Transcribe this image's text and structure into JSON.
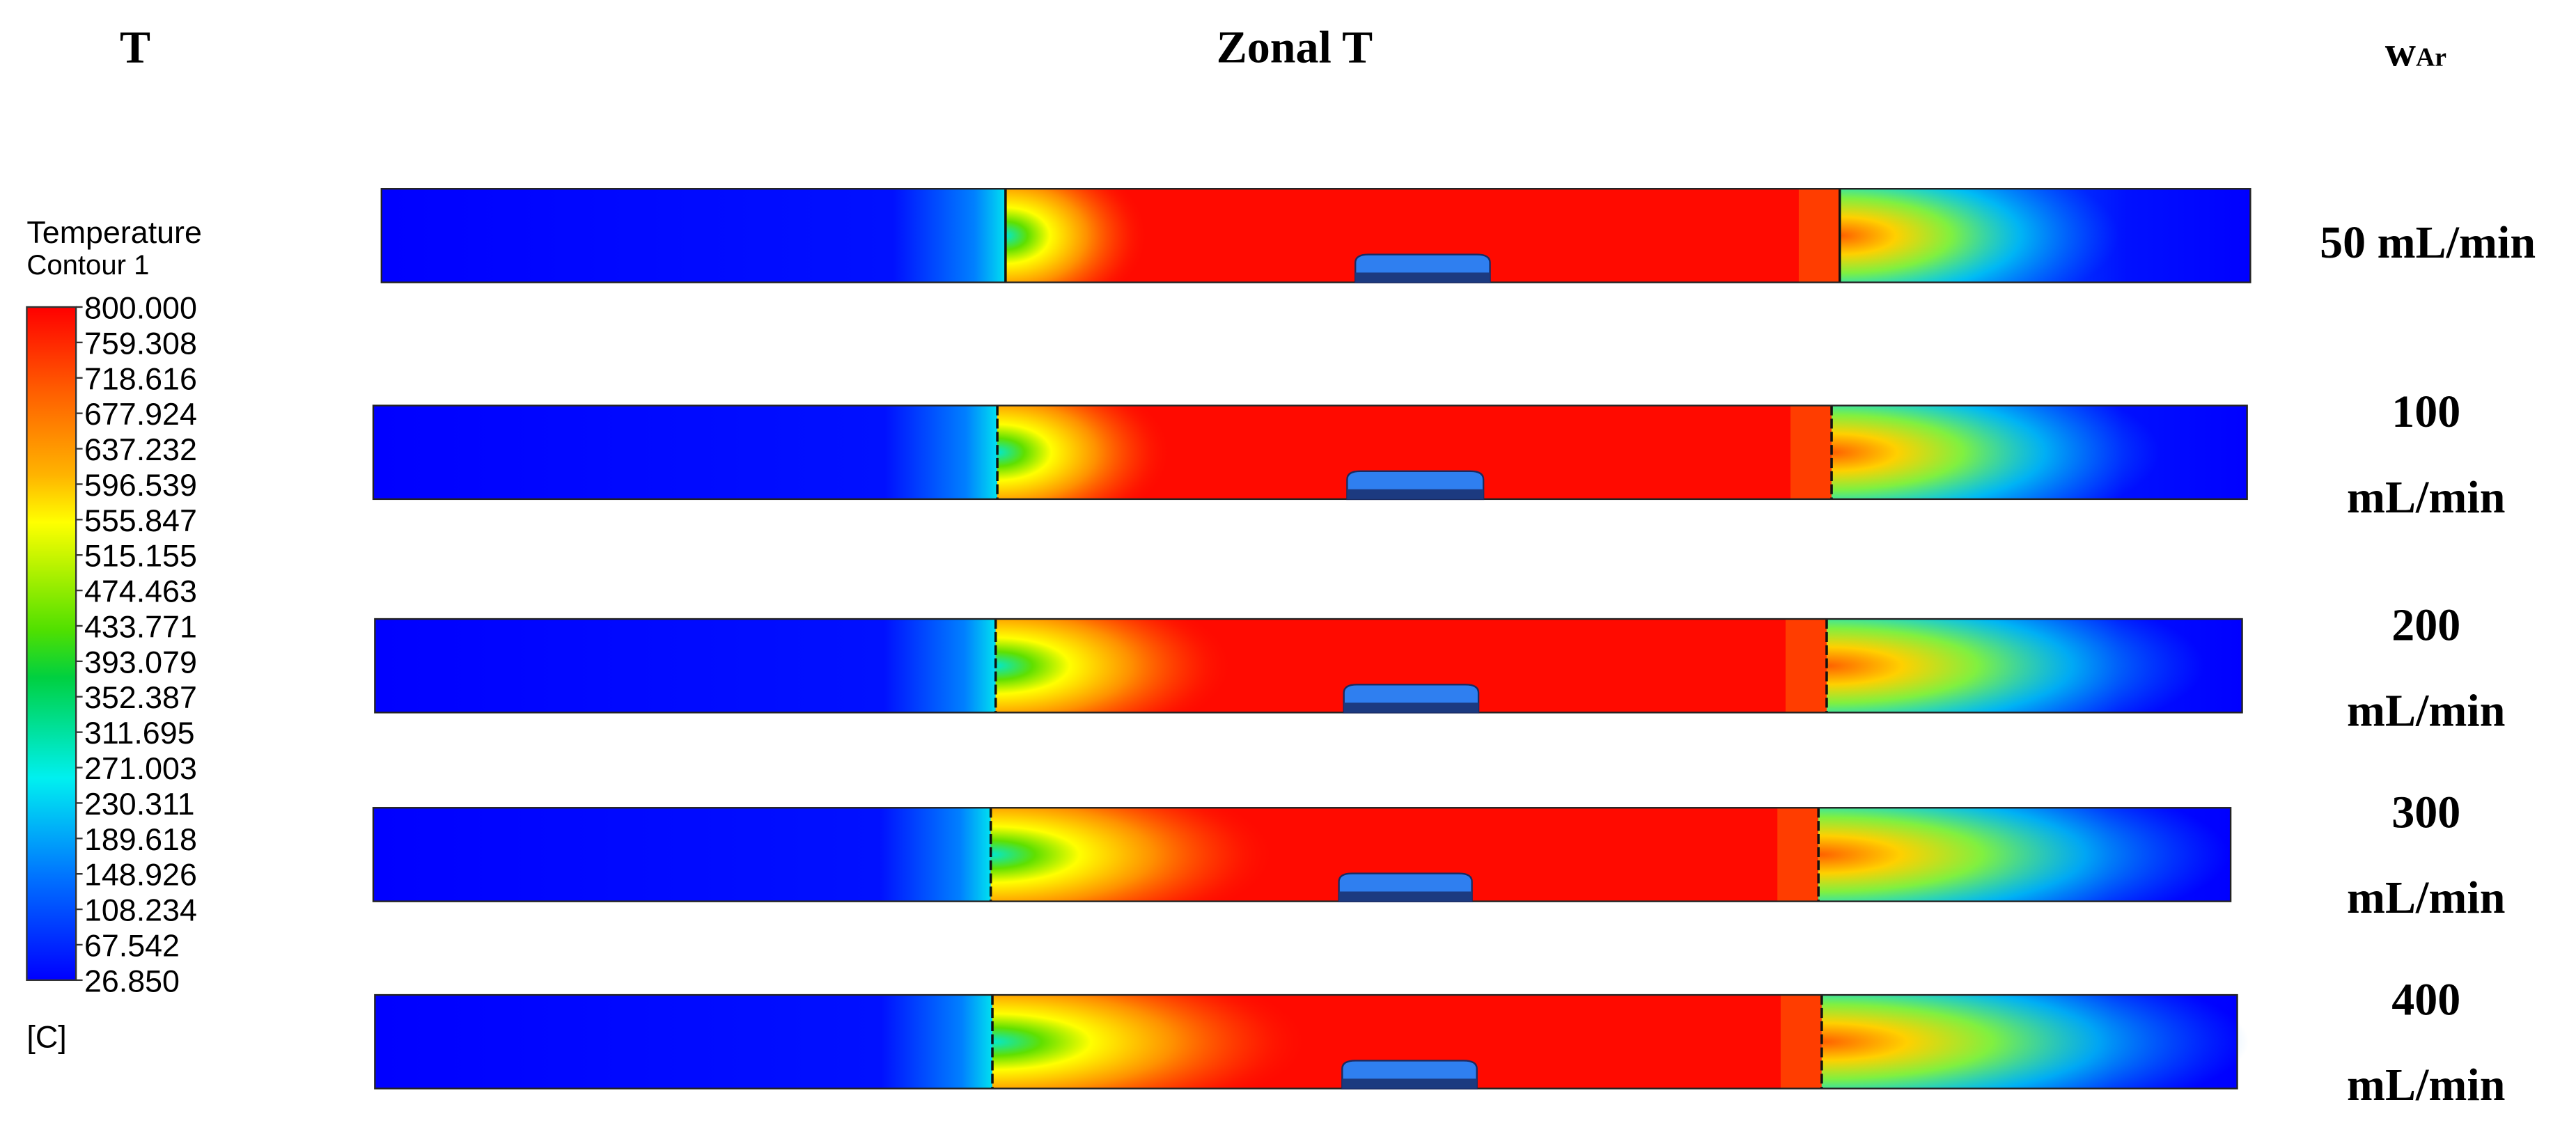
{
  "header": {
    "left_title": "T",
    "center_title": "Zonal T",
    "flow_label": "w",
    "flow_subscript": "Ar"
  },
  "legend": {
    "title": "Temperature",
    "subtitle": "Contour 1",
    "ticks": [
      "800.000",
      "759.308",
      "718.616",
      "677.924",
      "637.232",
      "596.539",
      "555.847",
      "515.155",
      "474.463",
      "433.771",
      "393.079",
      "352.387",
      "311.695",
      "271.003",
      "230.311",
      "189.618",
      "148.926",
      "108.234",
      "67.542",
      "26.850"
    ],
    "unit": "[C]"
  },
  "rows": [
    {
      "label": [
        "50 mL/min"
      ]
    },
    {
      "label": [
        "100",
        "mL/min"
      ]
    },
    {
      "label": [
        "200",
        "mL/min"
      ]
    },
    {
      "label": [
        "300",
        "mL/min"
      ]
    },
    {
      "label": [
        "400",
        "mL/min"
      ]
    }
  ]
}
